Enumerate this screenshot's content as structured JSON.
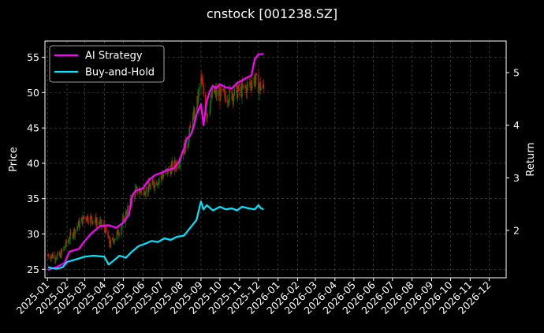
{
  "chart_data": {
    "type": "line",
    "title": "cnstock [001238.SZ]",
    "ylabel_left": "Price",
    "ylabel_right": "Return",
    "x_ticks": [
      "2025-01",
      "2025-02",
      "2025-03",
      "2025-04",
      "2025-05",
      "2025-06",
      "2025-07",
      "2025-08",
      "2025-09",
      "2025-10",
      "2025-11",
      "2025-12",
      "2026-01",
      "2026-02",
      "2026-03",
      "2026-04",
      "2026-05",
      "2026-06",
      "2026-07",
      "2026-08",
      "2026-09",
      "2026-10",
      "2026-11",
      "2026-12"
    ],
    "xlim": [
      "2024-12-28",
      "2026-12-28"
    ],
    "ylim_left": [
      23.8,
      57.3
    ],
    "yticks_left": [
      25,
      30,
      35,
      40,
      45,
      50,
      55
    ],
    "ylim_right": [
      1.1,
      5.6
    ],
    "yticks_right": [
      2,
      3,
      4,
      5
    ],
    "grid": true,
    "legend_position": "top-left",
    "colors": {
      "up": "#008000",
      "down": "#ff0000",
      "ai": "#ff00ff",
      "bh": "#00e5ff",
      "grid": "#555555"
    },
    "series": [
      {
        "name": "AI Strategy",
        "axis": "right",
        "points": [
          [
            "2025-01-02",
            1.25
          ],
          [
            "2025-01-15",
            1.3
          ],
          [
            "2025-01-28",
            1.38
          ],
          [
            "2025-02-05",
            1.6
          ],
          [
            "2025-02-20",
            1.65
          ],
          [
            "2025-03-01",
            1.8
          ],
          [
            "2025-03-12",
            1.95
          ],
          [
            "2025-03-25",
            2.08
          ],
          [
            "2025-04-08",
            2.1
          ],
          [
            "2025-04-20",
            2.05
          ],
          [
            "2025-05-01",
            2.15
          ],
          [
            "2025-05-10",
            2.3
          ],
          [
            "2025-05-15",
            2.65
          ],
          [
            "2025-05-20",
            2.75
          ],
          [
            "2025-06-01",
            2.8
          ],
          [
            "2025-06-10",
            2.95
          ],
          [
            "2025-06-20",
            3.05
          ],
          [
            "2025-07-01",
            3.1
          ],
          [
            "2025-07-10",
            3.15
          ],
          [
            "2025-07-20",
            3.18
          ],
          [
            "2025-07-28",
            3.3
          ],
          [
            "2025-08-05",
            3.55
          ],
          [
            "2025-08-10",
            3.75
          ],
          [
            "2025-08-15",
            3.8
          ],
          [
            "2025-08-20",
            3.95
          ],
          [
            "2025-08-25",
            4.2
          ],
          [
            "2025-09-01",
            4.4
          ],
          [
            "2025-09-05",
            4.0
          ],
          [
            "2025-09-10",
            4.45
          ],
          [
            "2025-09-15",
            4.65
          ],
          [
            "2025-09-20",
            4.75
          ],
          [
            "2025-09-25",
            4.7
          ],
          [
            "2025-10-01",
            4.78
          ],
          [
            "2025-10-10",
            4.72
          ],
          [
            "2025-10-20",
            4.7
          ],
          [
            "2025-10-28",
            4.8
          ],
          [
            "2025-11-05",
            4.85
          ],
          [
            "2025-11-12",
            4.9
          ],
          [
            "2025-11-20",
            4.95
          ],
          [
            "2025-11-25",
            5.25
          ],
          [
            "2025-12-01",
            5.35
          ],
          [
            "2025-12-05",
            5.35
          ],
          [
            "2025-12-09",
            5.36
          ]
        ]
      },
      {
        "name": "Buy-and-Hold",
        "axis": "right",
        "points": [
          [
            "2025-01-02",
            1.3
          ],
          [
            "2025-01-15",
            1.27
          ],
          [
            "2025-01-25",
            1.3
          ],
          [
            "2025-02-01",
            1.4
          ],
          [
            "2025-02-15",
            1.45
          ],
          [
            "2025-03-01",
            1.5
          ],
          [
            "2025-03-15",
            1.52
          ],
          [
            "2025-04-01",
            1.5
          ],
          [
            "2025-04-08",
            1.35
          ],
          [
            "2025-04-15",
            1.42
          ],
          [
            "2025-04-25",
            1.52
          ],
          [
            "2025-05-05",
            1.48
          ],
          [
            "2025-05-15",
            1.6
          ],
          [
            "2025-05-25",
            1.7
          ],
          [
            "2025-06-05",
            1.75
          ],
          [
            "2025-06-15",
            1.8
          ],
          [
            "2025-06-25",
            1.78
          ],
          [
            "2025-07-05",
            1.85
          ],
          [
            "2025-07-15",
            1.82
          ],
          [
            "2025-07-25",
            1.88
          ],
          [
            "2025-08-05",
            1.9
          ],
          [
            "2025-08-15",
            2.05
          ],
          [
            "2025-08-25",
            2.2
          ],
          [
            "2025-09-01",
            2.55
          ],
          [
            "2025-09-05",
            2.4
          ],
          [
            "2025-09-10",
            2.48
          ],
          [
            "2025-09-20",
            2.38
          ],
          [
            "2025-10-01",
            2.45
          ],
          [
            "2025-10-10",
            2.4
          ],
          [
            "2025-10-20",
            2.42
          ],
          [
            "2025-10-28",
            2.38
          ],
          [
            "2025-11-05",
            2.45
          ],
          [
            "2025-11-15",
            2.42
          ],
          [
            "2025-11-25",
            2.4
          ],
          [
            "2025-12-01",
            2.48
          ],
          [
            "2025-12-05",
            2.42
          ],
          [
            "2025-12-09",
            2.4
          ]
        ]
      }
    ],
    "price_anchors": [
      [
        "2025-01-02",
        27.0
      ],
      [
        "2025-01-20",
        26.8
      ],
      [
        "2025-02-05",
        29.5
      ],
      [
        "2025-03-01",
        32.5
      ],
      [
        "2025-03-15",
        32.0
      ],
      [
        "2025-04-01",
        31.0
      ],
      [
        "2025-04-10",
        28.5
      ],
      [
        "2025-04-25",
        30.5
      ],
      [
        "2025-05-10",
        34.0
      ],
      [
        "2025-05-20",
        36.0
      ],
      [
        "2025-06-10",
        36.5
      ],
      [
        "2025-07-05",
        38.5
      ],
      [
        "2025-07-25",
        40.0
      ],
      [
        "2025-08-10",
        43.0
      ],
      [
        "2025-08-25",
        48.0
      ],
      [
        "2025-09-01",
        52.0
      ],
      [
        "2025-09-10",
        47.0
      ],
      [
        "2025-09-20",
        50.0
      ],
      [
        "2025-10-10",
        49.5
      ],
      [
        "2025-10-25",
        50.0
      ],
      [
        "2025-11-10",
        50.5
      ],
      [
        "2025-11-25",
        52.0
      ],
      [
        "2025-12-01",
        51.0
      ],
      [
        "2025-12-09",
        50.5
      ]
    ]
  }
}
